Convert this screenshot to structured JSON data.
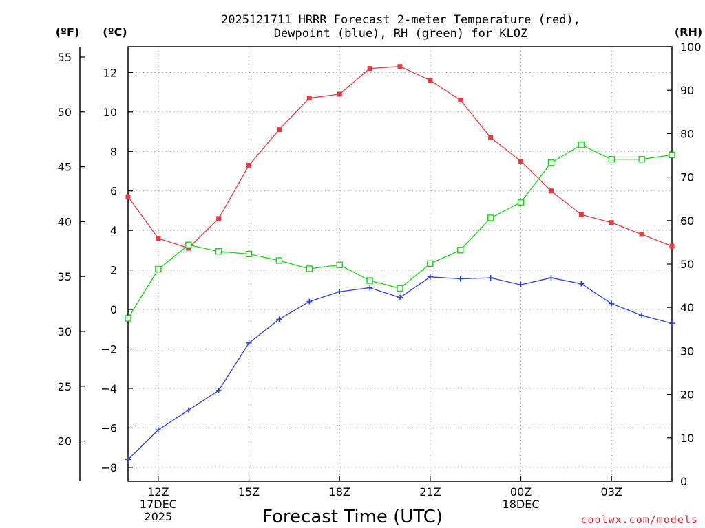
{
  "chart_data": {
    "type": "line",
    "title_lines": [
      "2025121711 HRRR Forecast 2-meter Temperature (red),",
      "Dewpoint (blue), RH (green) for KLOZ"
    ],
    "xlabel": "Forecast Time (UTC)",
    "unit_labels": {
      "fahrenheit": "(ºF)",
      "celsius": "(ºC)",
      "rh": "(RH)"
    },
    "x_ticks": [
      {
        "hour": 1,
        "lines": [
          "12Z",
          "17DEC",
          "2025"
        ]
      },
      {
        "hour": 4,
        "lines": [
          "15Z"
        ]
      },
      {
        "hour": 7,
        "lines": [
          "18Z"
        ]
      },
      {
        "hour": 10,
        "lines": [
          "21Z"
        ]
      },
      {
        "hour": 13,
        "lines": [
          "00Z",
          "18DEC"
        ]
      },
      {
        "hour": 16,
        "lines": [
          "03Z"
        ]
      }
    ],
    "x_range": [
      0,
      18
    ],
    "celsius_axis": {
      "range": [
        -8.7,
        13.3
      ],
      "ticks": [
        -8,
        -6,
        -4,
        -2,
        0,
        2,
        4,
        6,
        8,
        10,
        12
      ]
    },
    "fahrenheit_axis": {
      "ticks": [
        20,
        25,
        30,
        35,
        40,
        45,
        50,
        55
      ]
    },
    "rh_axis": {
      "range": [
        0,
        100
      ],
      "ticks": [
        0,
        10,
        20,
        30,
        40,
        50,
        60,
        70,
        80,
        90,
        100
      ]
    },
    "series": [
      {
        "name": "2-meter Temperature",
        "color": "#e8383e",
        "marker": "filled-square",
        "axis": "celsius",
        "hours": [
          0,
          1,
          2,
          3,
          4,
          5,
          6,
          7,
          8,
          9,
          10,
          11,
          12,
          13,
          14,
          15,
          16,
          17,
          18
        ],
        "values": [
          5.7,
          3.6,
          3.1,
          4.6,
          7.3,
          9.1,
          10.7,
          10.9,
          12.2,
          12.3,
          11.6,
          10.6,
          8.7,
          7.5,
          6.0,
          4.8,
          4.4,
          3.8,
          3.2
        ]
      },
      {
        "name": "Dewpoint",
        "color": "#2a3fe0",
        "marker": "plus",
        "axis": "celsius",
        "hours": [
          0,
          1,
          2,
          3,
          4,
          5,
          6,
          7,
          8,
          9,
          10,
          11,
          12,
          13,
          14,
          15,
          16,
          17,
          18
        ],
        "values": [
          -7.6,
          -6.1,
          -5.1,
          -4.1,
          -1.7,
          -0.5,
          0.4,
          0.9,
          1.1,
          0.6,
          1.65,
          1.55,
          1.6,
          1.25,
          1.6,
          1.3,
          0.3,
          -0.3,
          -0.7
        ]
      },
      {
        "name": "RH",
        "color": "#19d419",
        "marker": "open-square",
        "axis": "rh",
        "hours": [
          0,
          1,
          2,
          3,
          4,
          5,
          6,
          7,
          8,
          9,
          10,
          11,
          12,
          13,
          14,
          15,
          16,
          17,
          18
        ],
        "values": [
          37.5,
          48.8,
          54.4,
          52.9,
          52.3,
          50.8,
          48.9,
          49.8,
          46.2,
          44.4,
          50.1,
          53.2,
          60.6,
          64.2,
          73.3,
          77.4,
          74.1,
          74.1,
          75.1
        ]
      }
    ],
    "grid": true,
    "credit": "coolwx.com/models"
  }
}
